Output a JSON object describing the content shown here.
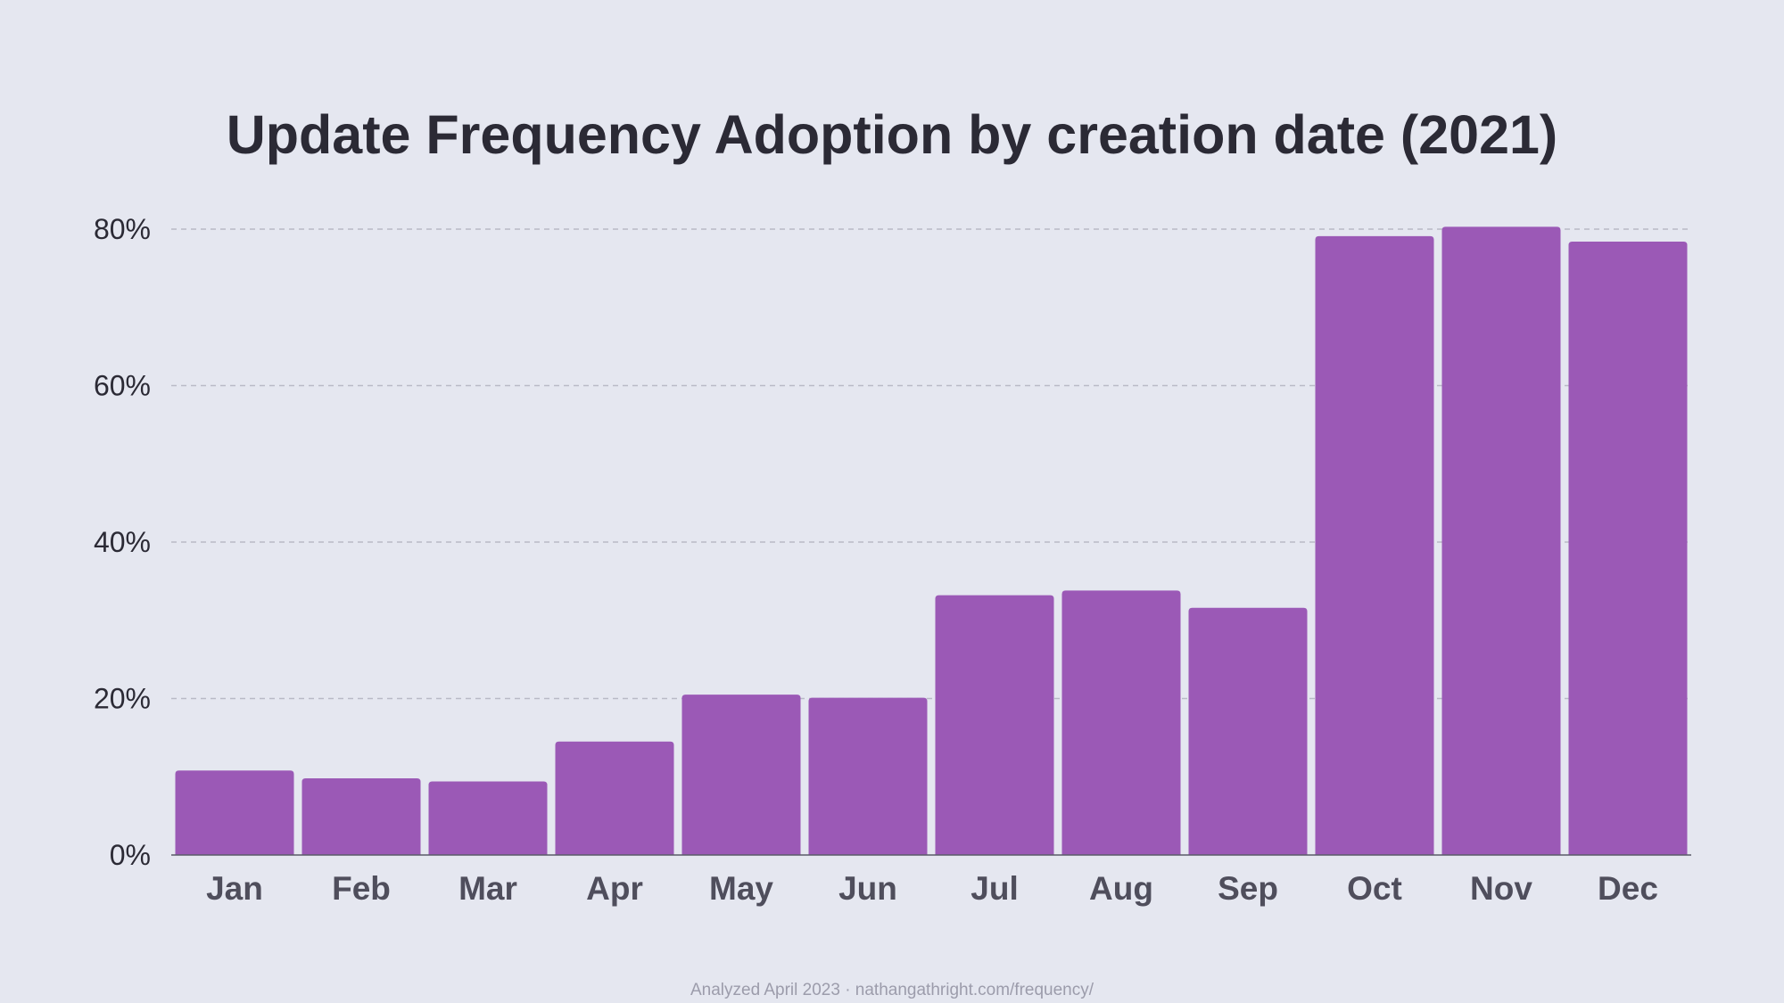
{
  "chart_data": {
    "type": "bar",
    "title": "Update Frequency Adoption by creation date (2021)",
    "categories": [
      "Jan",
      "Feb",
      "Mar",
      "Apr",
      "May",
      "Jun",
      "Jul",
      "Aug",
      "Sep",
      "Oct",
      "Nov",
      "Dec"
    ],
    "values": [
      10.8,
      9.8,
      9.4,
      14.5,
      20.5,
      20.1,
      33.2,
      33.8,
      31.6,
      79.1,
      80.3,
      78.4
    ],
    "y_tick_values": [
      0,
      20,
      40,
      60,
      80
    ],
    "y_tick_labels": [
      "0%",
      "20%",
      "40%",
      "60%",
      "80%"
    ],
    "ylim": [
      0,
      80
    ],
    "xlabel": "",
    "ylabel": "",
    "grid": true,
    "colors": {
      "bar": "#9b59b6",
      "background": "#e5e7f0",
      "gridline": "#b9bac6",
      "axis": "#5a5a68"
    },
    "footer": "Analyzed April 2023 · nathangathright.com/frequency/"
  }
}
